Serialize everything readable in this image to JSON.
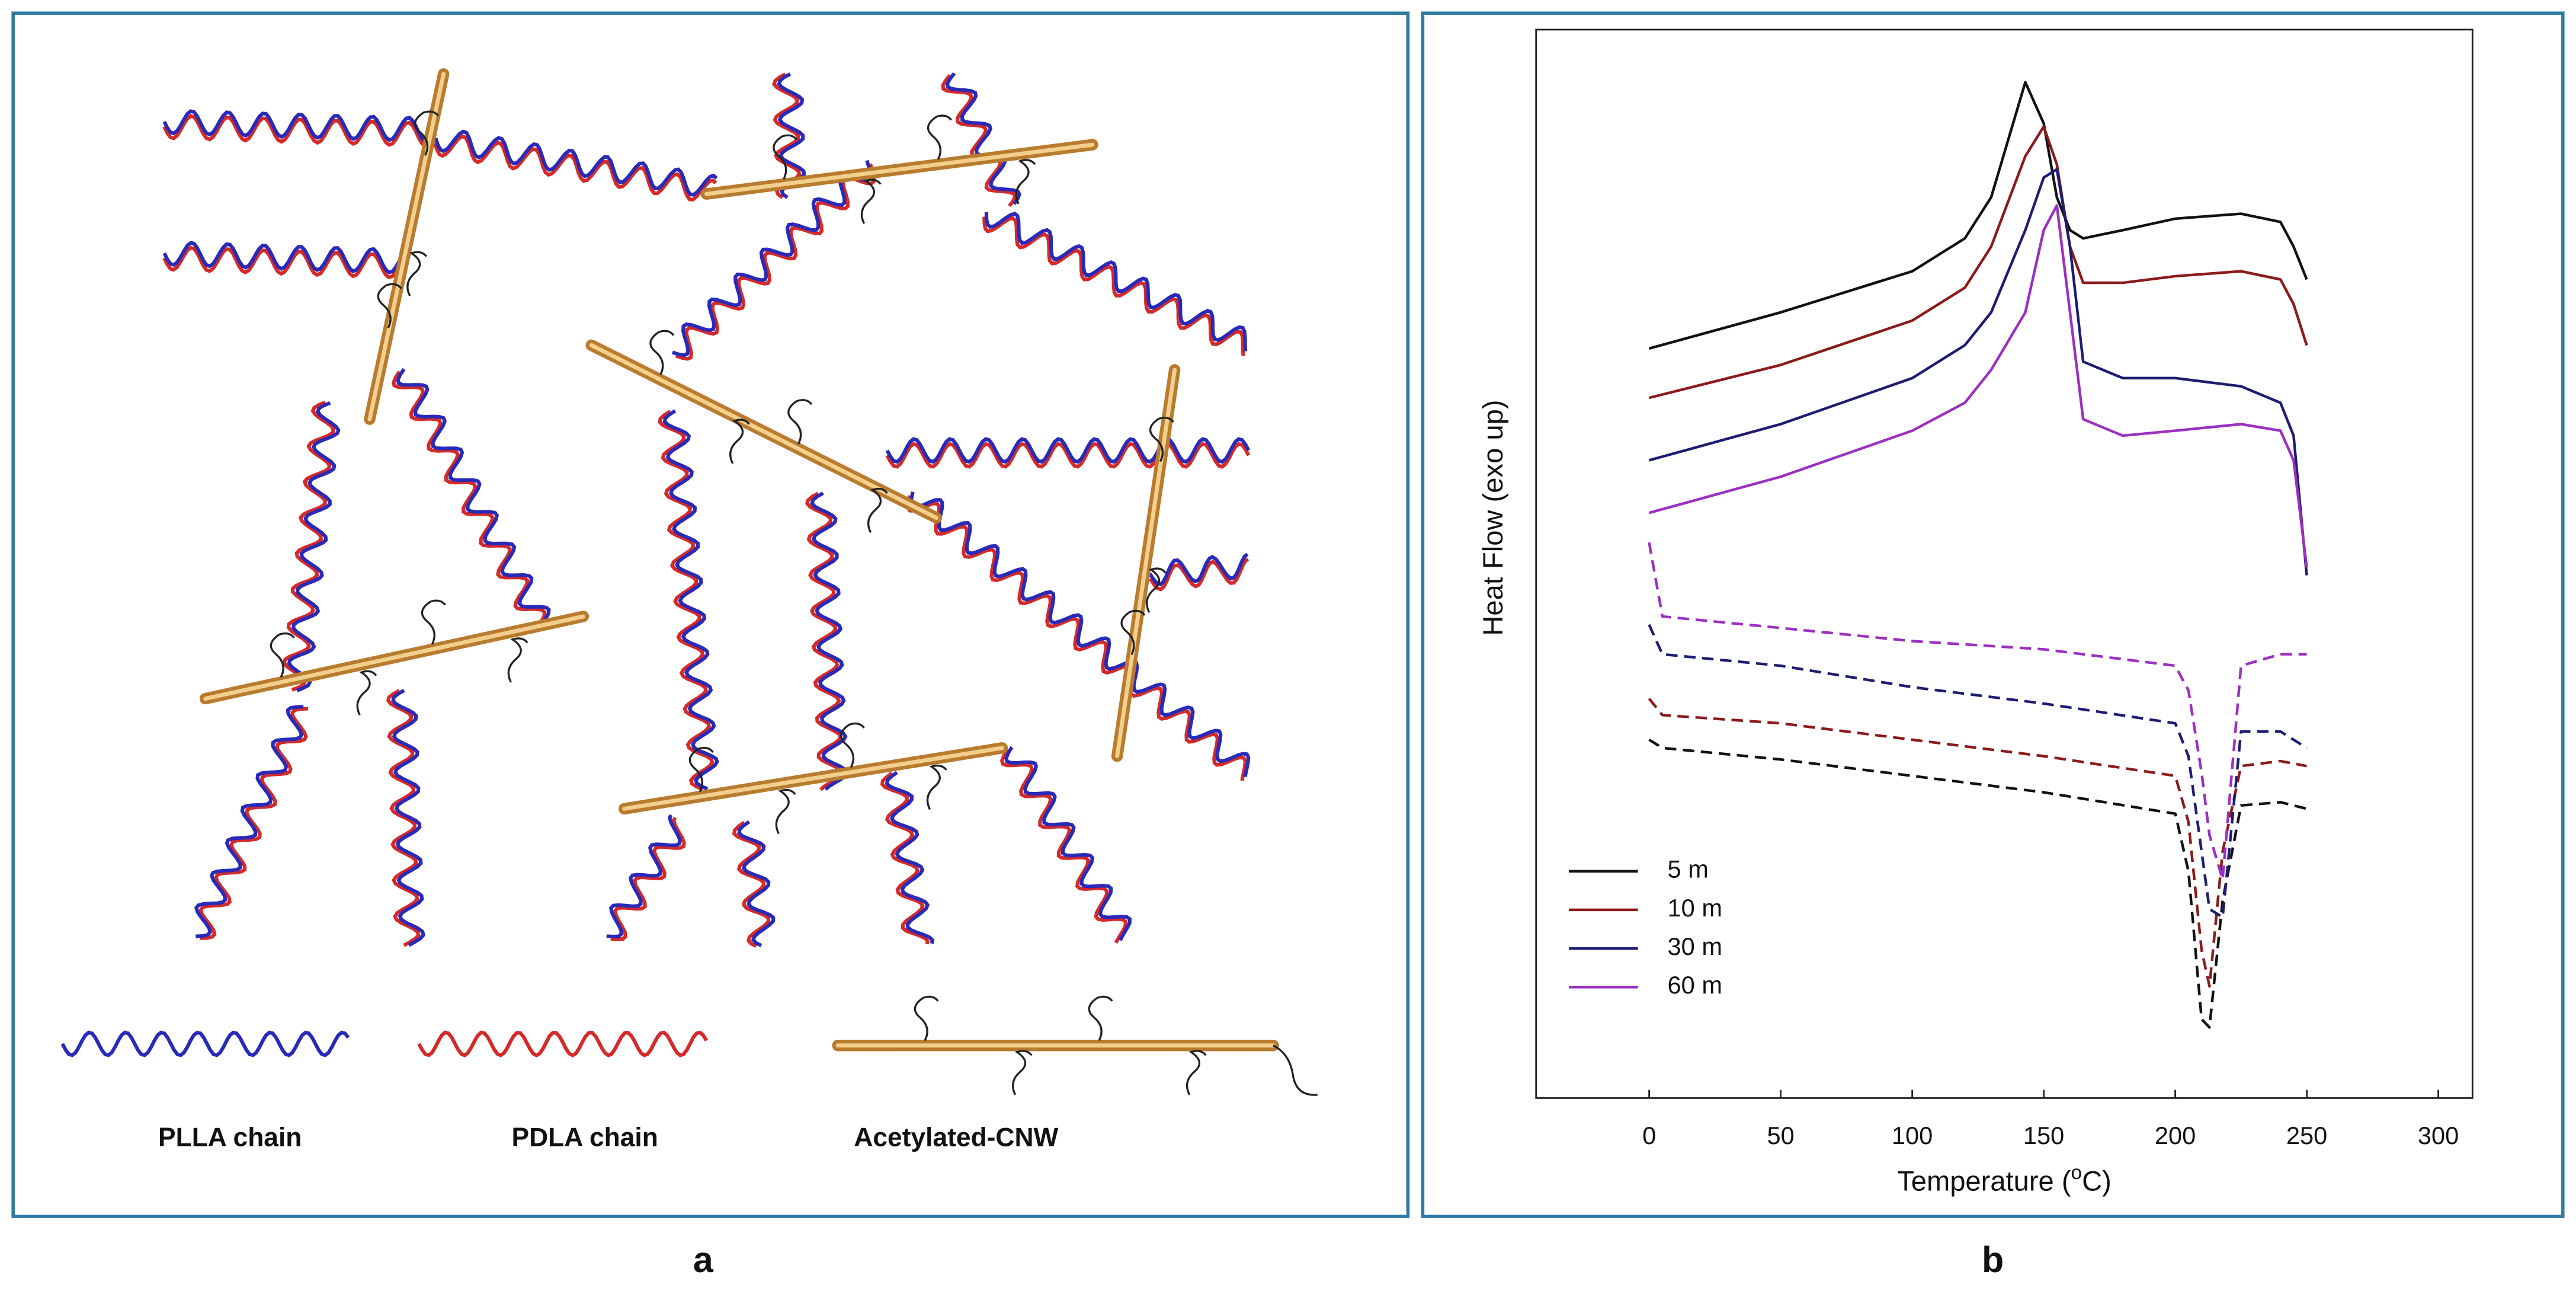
{
  "diagram": {
    "legend_labels": [
      "PLLA chain",
      "PDLA chain",
      "Acetylated-CNW"
    ]
  },
  "panel_labels": [
    "a",
    "b"
  ],
  "chart_data": {
    "type": "line",
    "x_label": [
      "Temperature (",
      "o",
      "C)"
    ],
    "y_label": "Heat Flow (exo up)",
    "x": [
      0,
      50,
      100,
      120,
      130,
      143,
      150,
      155,
      160,
      165,
      180,
      200,
      225,
      240,
      245,
      250
    ],
    "x_dashed": [
      0,
      5,
      50,
      100,
      150,
      200,
      205,
      210,
      213,
      218,
      225,
      240,
      250
    ],
    "xlim": [
      -43,
      313
    ],
    "xticks": [
      0,
      50,
      100,
      150,
      200,
      250,
      300
    ],
    "ylim": [
      0,
      650
    ],
    "legend": "lower left",
    "series": [
      {
        "name": "5 m",
        "color": "#111111",
        "values": [
          456,
          478,
          503,
          523,
          548,
          618,
          593,
          548,
          528,
          523,
          528,
          535,
          538,
          533,
          518,
          498
        ],
        "dashed_values": [
          218,
          213,
          206,
          196,
          186,
          173,
          138,
          48,
          43,
          120,
          178,
          180,
          176
        ]
      },
      {
        "name": "10 m",
        "color": "#8b1a1a",
        "values": [
          426,
          446,
          473,
          493,
          518,
          573,
          591,
          568,
          518,
          496,
          496,
          500,
          503,
          498,
          483,
          458
        ],
        "dashed_values": [
          243,
          233,
          228,
          218,
          208,
          196,
          168,
          90,
          68,
          150,
          202,
          205,
          202
        ]
      },
      {
        "name": "30 m",
        "color": "#1c1c72",
        "values": [
          388,
          410,
          438,
          458,
          478,
          528,
          560,
          565,
          518,
          448,
          438,
          438,
          433,
          423,
          403,
          318
        ],
        "dashed_values": [
          288,
          270,
          263,
          250,
          240,
          228,
          208,
          150,
          115,
          110,
          223,
          223,
          213
        ]
      },
      {
        "name": "60 m",
        "color": "#9b30c0",
        "values": [
          356,
          378,
          406,
          423,
          443,
          478,
          528,
          543,
          478,
          413,
          403,
          406,
          410,
          406,
          388,
          323
        ],
        "dashed_values": [
          338,
          293,
          286,
          278,
          273,
          263,
          248,
          198,
          160,
          133,
          263,
          270,
          270
        ]
      }
    ]
  }
}
